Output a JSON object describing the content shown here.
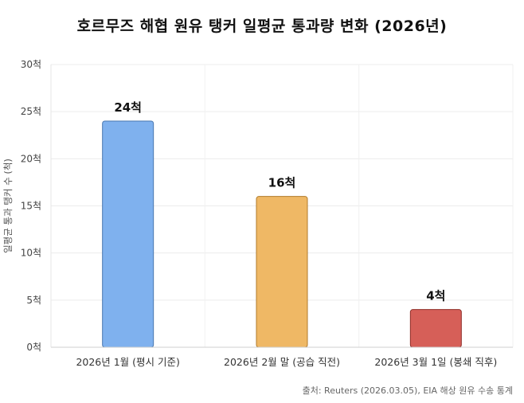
{
  "chart_data": {
    "type": "bar",
    "title": "호르무즈 해협 원유 탱커 일평균 통과량 변화 (2026년)",
    "ylabel": "일평균 통과 탱커 수 (척)",
    "xlabel": "",
    "categories": [
      "2026년 1월 (평시 기준)",
      "2026년 2월 말 (공습 직전)",
      "2026년 3월 1일 (봉쇄 직후)"
    ],
    "values": [
      24,
      16,
      4
    ],
    "data_labels": [
      "24척",
      "16척",
      "4척"
    ],
    "ylim": [
      0,
      30
    ],
    "y_ticks": [
      0,
      5,
      10,
      15,
      20,
      25,
      30
    ],
    "y_tick_labels": [
      "0척",
      "5척",
      "10척",
      "15척",
      "20척",
      "25척",
      "30척"
    ],
    "bar_colors": [
      "#7fb1ee",
      "#efb865",
      "#d65f58"
    ],
    "bar_stroke_colors": [
      "#4a78b0",
      "#b07a2a",
      "#8e2e28"
    ],
    "grid": true,
    "legend": "none"
  },
  "source": "출처: Reuters (2026.03.05), EIA 해상 원유 수송 통계"
}
